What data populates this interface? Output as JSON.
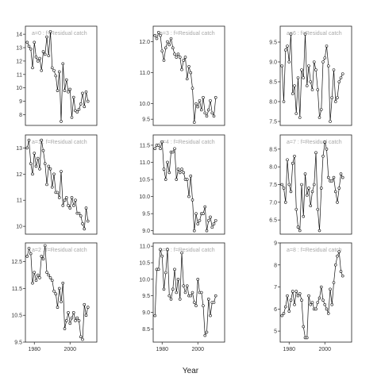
{
  "figure": {
    "xlabel": "Year"
  },
  "chart_data": [
    {
      "type": "line",
      "label": "a=0  :  f=Residual catch",
      "xlim": [
        1975,
        2015
      ],
      "ylim": [
        7.2,
        14.6
      ],
      "yticks": [
        8,
        9,
        10,
        11,
        12,
        13,
        14
      ],
      "xticks": [],
      "x": [
        1976,
        1977,
        1978,
        1979,
        1980,
        1981,
        1982,
        1983,
        1984,
        1985,
        1986,
        1987,
        1988,
        1989,
        1990,
        1991,
        1992,
        1993,
        1994,
        1995,
        1996,
        1997,
        1998,
        1999,
        2000,
        2001,
        2002,
        2003,
        2004,
        2005,
        2006,
        2007,
        2008,
        2009,
        2010
      ],
      "y": [
        13.4,
        13.1,
        12.9,
        11.5,
        13.4,
        12.3,
        12.0,
        12.2,
        11.3,
        12.7,
        12.5,
        13.8,
        12.4,
        14.2,
        11.5,
        11.3,
        10.9,
        9.8,
        11.2,
        7.5,
        11.8,
        9.8,
        10.6,
        9.7,
        9.9,
        7.8,
        9.3,
        8.3,
        8.2,
        8.4,
        8.8,
        9.6,
        8.6,
        9.7,
        9.0
      ]
    },
    {
      "type": "line",
      "label": "a=3  :  f=Residual catch",
      "xlim": [
        1975,
        2015
      ],
      "ylim": [
        9.3,
        12.5
      ],
      "yticks": [
        9.5,
        10.0,
        11.0,
        12.0
      ],
      "xticks": [],
      "x": [
        1976,
        1977,
        1978,
        1979,
        1980,
        1981,
        1982,
        1983,
        1984,
        1985,
        1986,
        1987,
        1988,
        1989,
        1990,
        1991,
        1992,
        1993,
        1994,
        1995,
        1996,
        1997,
        1998,
        1999,
        2000,
        2001,
        2002,
        2003,
        2004,
        2005,
        2006,
        2007,
        2008,
        2009,
        2010
      ],
      "y": [
        12.2,
        12.1,
        12.3,
        12.2,
        11.7,
        11.4,
        11.8,
        12.0,
        11.9,
        12.1,
        11.8,
        11.6,
        11.5,
        11.6,
        11.5,
        11.1,
        11.4,
        11.5,
        10.8,
        11.2,
        11.0,
        10.5,
        9.4,
        10.0,
        9.9,
        10.1,
        9.8,
        10.2,
        9.7,
        9.6,
        9.8,
        10.1,
        9.7,
        9.6,
        10.2
      ]
    },
    {
      "type": "line",
      "label": "a=6  :  f=Residual catch",
      "xlim": [
        1975,
        2015
      ],
      "ylim": [
        7.4,
        9.9
      ],
      "yticks": [
        7.5,
        8.0,
        8.5,
        9.0,
        9.5
      ],
      "xticks": [],
      "x": [
        1976,
        1977,
        1978,
        1979,
        1980,
        1981,
        1982,
        1983,
        1984,
        1985,
        1986,
        1987,
        1988,
        1989,
        1990,
        1991,
        1992,
        1993,
        1994,
        1995,
        1996,
        1997,
        1998,
        1999,
        2000,
        2001,
        2002,
        2003,
        2004,
        2005,
        2006,
        2007,
        2008,
        2009,
        2010
      ],
      "y": [
        8.9,
        8.0,
        9.3,
        9.4,
        9.0,
        9.7,
        8.2,
        8.4,
        7.7,
        8.6,
        7.6,
        8.8,
        8.6,
        9.7,
        8.4,
        8.9,
        8.5,
        8.3,
        9.0,
        8.8,
        8.3,
        7.6,
        7.8,
        9.0,
        9.1,
        9.4,
        8.9,
        7.5,
        8.1,
        8.8,
        8.0,
        8.1,
        8.5,
        8.6,
        8.7
      ]
    },
    {
      "type": "line",
      "label": "a=1  :  f=Residual catch",
      "xlim": [
        1975,
        2015
      ],
      "ylim": [
        9.7,
        13.5
      ],
      "yticks": [
        10.0,
        11.0,
        12.0,
        13.0
      ],
      "xticks": [],
      "x": [
        1976,
        1977,
        1978,
        1979,
        1980,
        1981,
        1982,
        1983,
        1984,
        1985,
        1986,
        1987,
        1988,
        1989,
        1990,
        1991,
        1992,
        1993,
        1994,
        1995,
        1996,
        1997,
        1998,
        1999,
        2000,
        2001,
        2002,
        2003,
        2004,
        2005,
        2006,
        2007,
        2008,
        2009,
        2010
      ],
      "y": [
        13.0,
        13.3,
        12.4,
        12.0,
        12.8,
        12.3,
        12.6,
        12.2,
        13.3,
        12.9,
        12.4,
        11.6,
        12.3,
        12.2,
        11.5,
        12.0,
        11.3,
        11.3,
        11.1,
        12.1,
        10.8,
        11.0,
        11.1,
        10.8,
        10.7,
        11.1,
        10.8,
        11.0,
        10.5,
        10.5,
        10.4,
        10.1,
        9.9,
        10.7,
        10.2
      ]
    },
    {
      "type": "line",
      "label": "a=4  :  f=Residual catch",
      "xlim": [
        1975,
        2015
      ],
      "ylim": [
        8.9,
        11.8
      ],
      "yticks": [
        9.0,
        9.5,
        10.0,
        10.5,
        11.0,
        11.5
      ],
      "xticks": [],
      "x": [
        1976,
        1977,
        1978,
        1979,
        1980,
        1981,
        1982,
        1983,
        1984,
        1985,
        1986,
        1987,
        1988,
        1989,
        1990,
        1991,
        1992,
        1993,
        1994,
        1995,
        1996,
        1997,
        1998,
        1999,
        2000,
        2001,
        2002,
        2003,
        2004,
        2005,
        2006,
        2007,
        2008,
        2009,
        2010
      ],
      "y": [
        11.4,
        11.5,
        11.5,
        11.4,
        11.6,
        10.8,
        10.5,
        11.0,
        10.7,
        11.3,
        11.3,
        11.4,
        10.5,
        10.8,
        10.7,
        10.8,
        10.7,
        10.5,
        10.5,
        10.0,
        10.6,
        9.9,
        9.0,
        9.5,
        9.2,
        9.3,
        9.5,
        9.5,
        9.7,
        9.0,
        9.3,
        9.4,
        9.1,
        9.2,
        9.3
      ]
    },
    {
      "type": "line",
      "label": "a=7  :  f=Residual catch",
      "xlim": [
        1975,
        2015
      ],
      "ylim": [
        6.1,
        8.9
      ],
      "yticks": [
        6.5,
        7.0,
        7.5,
        8.0,
        8.5
      ],
      "xticks": [],
      "x": [
        1976,
        1977,
        1978,
        1979,
        1980,
        1981,
        1982,
        1983,
        1984,
        1985,
        1986,
        1987,
        1988,
        1989,
        1990,
        1991,
        1992,
        1993,
        1994,
        1995,
        1996,
        1997,
        1998,
        1999,
        2000,
        2001,
        2002,
        2003,
        2004,
        2005,
        2006,
        2007,
        2008,
        2009,
        2010
      ],
      "y": [
        7.5,
        7.4,
        7.0,
        8.2,
        7.5,
        7.3,
        8.1,
        8.3,
        6.8,
        6.3,
        6.2,
        7.5,
        6.6,
        7.8,
        7.2,
        7.4,
        6.9,
        7.3,
        7.5,
        8.4,
        6.8,
        6.2,
        7.4,
        8.3,
        8.7,
        8.5,
        7.7,
        7.6,
        7.6,
        7.7,
        7.3,
        7.0,
        7.4,
        7.8,
        7.7
      ]
    },
    {
      "type": "line",
      "label": "a=2  :  f=Residual catch",
      "xlim": [
        1975,
        2015
      ],
      "ylim": [
        9.5,
        13.2
      ],
      "yticks": [
        9.5,
        10.5,
        11.5,
        12.5
      ],
      "xticks": [
        1980,
        2000
      ],
      "x": [
        1976,
        1977,
        1978,
        1979,
        1980,
        1981,
        1982,
        1983,
        1984,
        1985,
        1986,
        1987,
        1988,
        1989,
        1990,
        1991,
        1992,
        1993,
        1994,
        1995,
        1996,
        1997,
        1998,
        1999,
        2000,
        2001,
        2002,
        2003,
        2004,
        2005,
        2006,
        2007,
        2008,
        2009,
        2010
      ],
      "y": [
        12.7,
        13.0,
        12.8,
        11.7,
        12.1,
        11.8,
        12.0,
        11.9,
        12.7,
        12.6,
        13.1,
        12.1,
        12.0,
        11.9,
        11.8,
        11.4,
        11.3,
        10.8,
        11.5,
        11.0,
        11.7,
        10.0,
        10.3,
        10.6,
        10.2,
        10.4,
        10.6,
        10.3,
        10.4,
        10.3,
        9.7,
        9.6,
        10.9,
        10.5,
        10.8
      ]
    },
    {
      "type": "line",
      "label": "a=5  :  f=Residual catch",
      "xlim": [
        1975,
        2015
      ],
      "ylim": [
        8.1,
        11.1
      ],
      "yticks": [
        8.5,
        9.0,
        9.5,
        10.0,
        10.5,
        11.0
      ],
      "xticks": [
        1980,
        2000
      ],
      "x": [
        1976,
        1977,
        1978,
        1979,
        1980,
        1981,
        1982,
        1983,
        1984,
        1985,
        1986,
        1987,
        1988,
        1989,
        1990,
        1991,
        1992,
        1993,
        1994,
        1995,
        1996,
        1997,
        1998,
        1999,
        2000,
        2001,
        2002,
        2003,
        2004,
        2005,
        2006,
        2007,
        2008,
        2009,
        2010
      ],
      "y": [
        8.9,
        10.3,
        10.3,
        10.9,
        10.7,
        9.7,
        10.2,
        10.9,
        9.5,
        9.4,
        9.7,
        10.3,
        9.6,
        10.0,
        9.4,
        10.8,
        9.8,
        9.6,
        9.8,
        9.5,
        9.5,
        9.6,
        9.3,
        9.2,
        10.0,
        9.6,
        9.6,
        9.2,
        8.3,
        8.4,
        9.4,
        8.9,
        9.3,
        9.3,
        9.5
      ]
    },
    {
      "type": "line",
      "label": "a=8  :  f=Residual catch",
      "xlim": [
        1975,
        2015
      ],
      "ylim": [
        4.5,
        9.0
      ],
      "yticks": [
        5,
        6,
        7,
        8,
        9
      ],
      "xticks": [
        1980,
        2000
      ],
      "x": [
        1976,
        1977,
        1978,
        1979,
        1980,
        1981,
        1982,
        1983,
        1984,
        1985,
        1986,
        1987,
        1988,
        1989,
        1990,
        1991,
        1992,
        1993,
        1994,
        1995,
        1996,
        1997,
        1998,
        1999,
        2000,
        2001,
        2002,
        2003,
        2004,
        2005,
        2006,
        2007,
        2008,
        2009,
        2010
      ],
      "y": [
        5.7,
        5.8,
        6.1,
        6.6,
        5.9,
        6.4,
        6.8,
        6.2,
        6.8,
        6.6,
        6.7,
        6.4,
        5.2,
        4.7,
        4.7,
        6.6,
        6.2,
        6.3,
        6.0,
        6.0,
        6.3,
        6.5,
        7.0,
        6.4,
        6.2,
        6.0,
        5.8,
        6.9,
        6.2,
        7.2,
        8.0,
        8.4,
        8.6,
        7.7,
        7.5
      ]
    }
  ]
}
